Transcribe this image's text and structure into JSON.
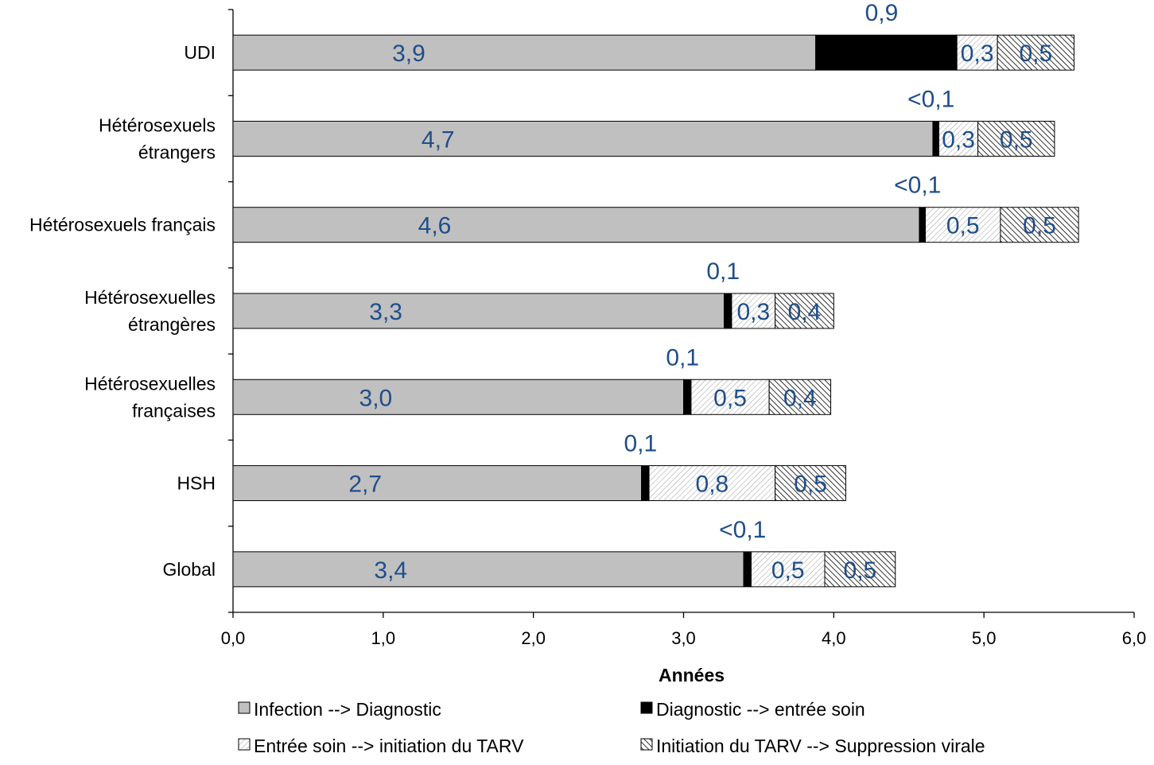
{
  "chart_data": {
    "type": "bar",
    "orientation": "horizontal",
    "stacked": true,
    "categories": [
      "Global",
      "HSH",
      "Hétérosexuelles françaises",
      "Hétérosexuelles étrangères",
      "Hétérosexuels français",
      "Hétérosexuels étrangers",
      "UDI"
    ],
    "category_lines": [
      [
        "Global"
      ],
      [
        "HSH"
      ],
      [
        "Hétérosexuelles",
        "françaises"
      ],
      [
        "Hétérosexuelles",
        "étrangères"
      ],
      [
        "Hétérosexuels français"
      ],
      [
        "Hétérosexuels",
        "étrangers"
      ],
      [
        "UDI"
      ]
    ],
    "series": [
      {
        "name": "Infection --> Diagnostic",
        "color": "#c0c0c0",
        "pattern": "solid",
        "values": [
          3.4,
          2.72,
          3.0,
          3.27,
          4.57,
          4.66,
          3.88
        ],
        "labels": [
          "3,4",
          "2,7",
          "3,0",
          "3,3",
          "4,6",
          "4,7",
          "3,9"
        ]
      },
      {
        "name": "Diagnostic --> entrée soin",
        "color": "#000000",
        "pattern": "solid",
        "values": [
          0.05,
          0.05,
          0.05,
          0.05,
          0.04,
          0.04,
          0.94
        ],
        "labels": [
          "<0,1",
          "0,1",
          "0,1",
          "0,1",
          "<0,1",
          "<0,1",
          "0,9"
        ]
      },
      {
        "name": "Entrée soin --> initiation du TARV",
        "color": "#ffffff",
        "pattern": "light-diagonal",
        "values": [
          0.49,
          0.84,
          0.52,
          0.29,
          0.5,
          0.26,
          0.27
        ],
        "labels": [
          "0,5",
          "0,8",
          "0,5",
          "0,3",
          "0,5",
          "0,3",
          "0,3"
        ]
      },
      {
        "name": "Initiation du TARV --> Suppression virale",
        "color": "#ffffff",
        "pattern": "dense-diagonal",
        "values": [
          0.47,
          0.47,
          0.41,
          0.39,
          0.52,
          0.51,
          0.51
        ],
        "labels": [
          "0,5",
          "0,5",
          "0,4",
          "0,4",
          "0,5",
          "0,5",
          "0,5"
        ]
      }
    ],
    "xlabel": "Années",
    "ylabel": "",
    "xlim": [
      0,
      6
    ],
    "xticks": [
      0,
      1,
      2,
      3,
      4,
      5,
      6
    ],
    "xtick_labels": [
      "0,0",
      "1,0",
      "2,0",
      "3,0",
      "4,0",
      "5,0",
      "6,0"
    ],
    "grid": false,
    "legend_position": "bottom",
    "label_color": "#1f4e8a"
  }
}
